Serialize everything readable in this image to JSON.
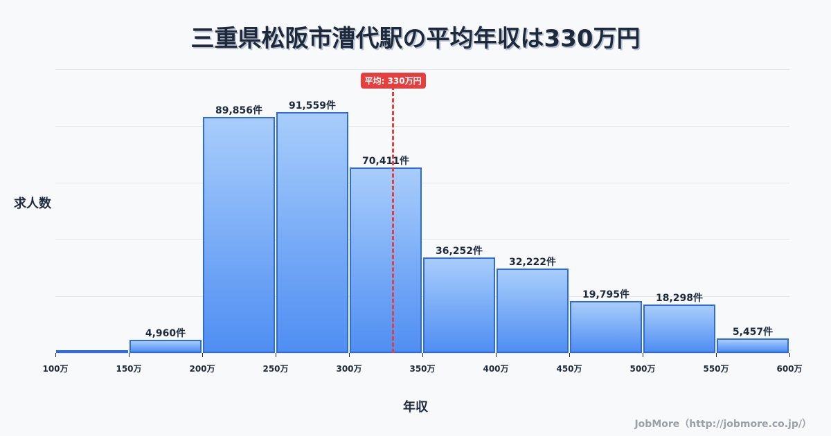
{
  "title": "三重県松阪市漕代駅の平均年収は330万円",
  "y_axis_label": "求人数",
  "x_axis_label": "年収",
  "credit": "JobMore（http://jobmore.co.jp/）",
  "average": {
    "label": "平均: 330万円",
    "value": 330,
    "color": "#e5403f"
  },
  "colors": {
    "bar_border": "#2f6be0",
    "bar_top": "#a8cdfb",
    "bar_bottom": "#4f8ef2",
    "grid": "#e3e6ec",
    "text": "#1e2a3b"
  },
  "chart_data": {
    "type": "bar",
    "title": "三重県松阪市漕代駅の平均年収は330万円",
    "xlabel": "年収",
    "ylabel": "求人数",
    "categories": [
      "100万-150万",
      "150万-200万",
      "200万-250万",
      "250万-300万",
      "300万-350万",
      "350万-400万",
      "400万-450万",
      "450万-500万",
      "500万-550万",
      "550万-600万"
    ],
    "values": [
      0,
      4960,
      89856,
      91559,
      70411,
      36252,
      32222,
      19795,
      18298,
      5457
    ],
    "value_labels": [
      "",
      "4,960件",
      "89,856件",
      "91,559件",
      "70,411件",
      "36,252件",
      "32,222件",
      "19,795件",
      "18,298件",
      "5,457件"
    ],
    "x_ticks": [
      "100万",
      "150万",
      "200万",
      "250万",
      "300万",
      "350万",
      "400万",
      "450万",
      "500万",
      "550万",
      "600万"
    ],
    "y_max": 107900,
    "grid": true,
    "annotations": [
      {
        "type": "vline",
        "x": 330,
        "label": "平均: 330万円"
      }
    ]
  }
}
